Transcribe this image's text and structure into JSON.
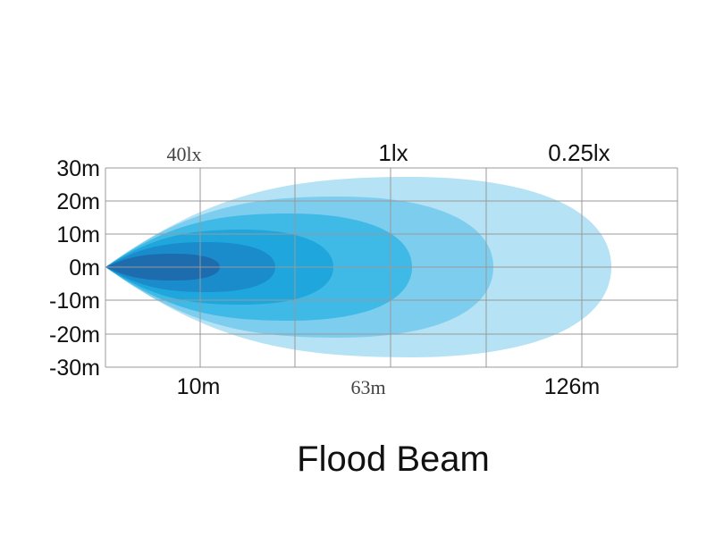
{
  "title": "Flood Beam",
  "y_labels": [
    "30m",
    "20m",
    "10m",
    "0m",
    "-10m",
    "-20m",
    "-30m"
  ],
  "top_labels": [
    "40lx",
    "1lx",
    "0.25lx"
  ],
  "bottom_labels": [
    "10m",
    "63m",
    "126m"
  ]
}
